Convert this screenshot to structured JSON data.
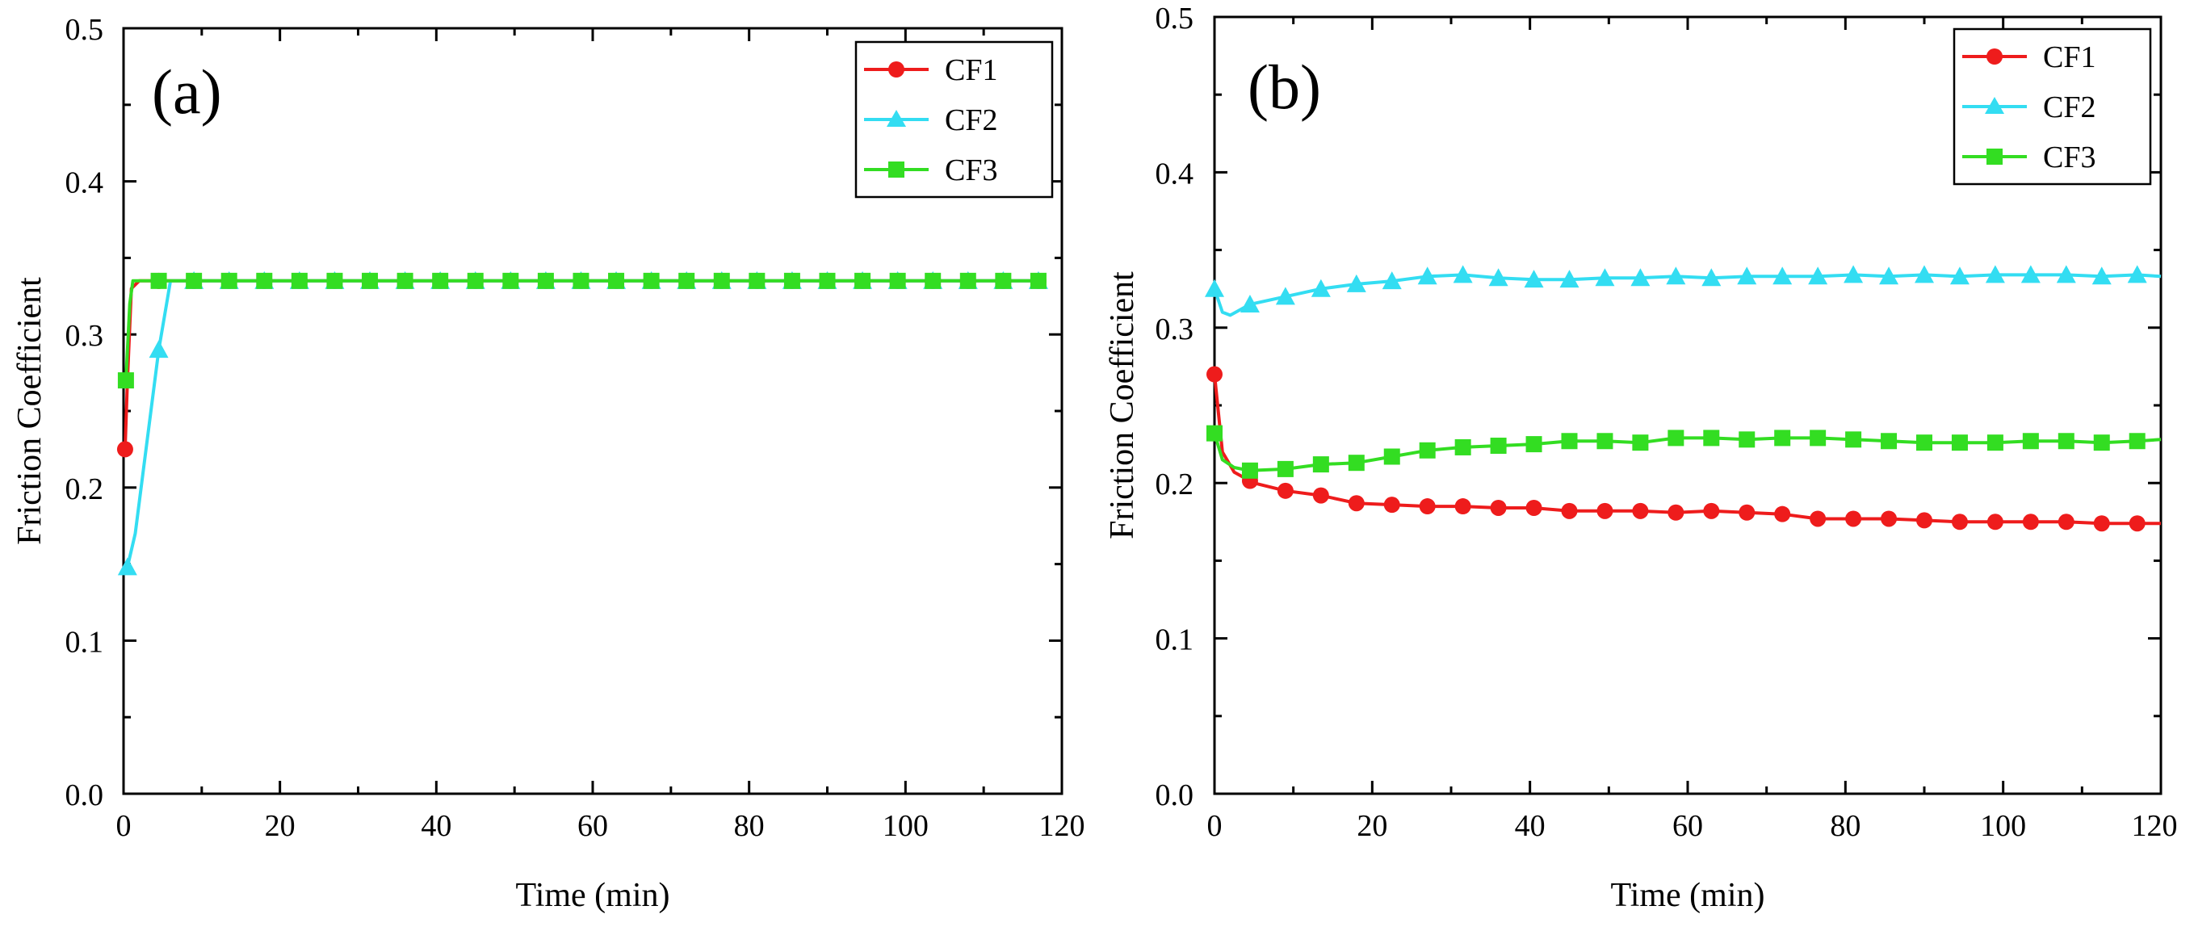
{
  "chart_data": [
    {
      "type": "line",
      "panel_label": "(a)",
      "xlabel": "Time (min)",
      "ylabel": "Friction Coefficient",
      "xlim": [
        0,
        120
      ],
      "ylim": [
        0.0,
        0.5
      ],
      "xticks": [
        "0",
        "20",
        "40",
        "60",
        "80",
        "100",
        "120"
      ],
      "yticks": [
        "0.0",
        "0.1",
        "0.2",
        "0.3",
        "0.4",
        "0.5"
      ],
      "legend_position": "top-right",
      "series": [
        {
          "name": "CF1",
          "color": "#ee1c1c",
          "marker": "circle",
          "x": [
            0.2,
            0.5,
            1,
            2,
            5,
            10,
            20,
            30,
            40,
            50,
            60,
            70,
            80,
            90,
            100,
            110,
            118
          ],
          "y": [
            0.225,
            0.27,
            0.33,
            0.335,
            0.335,
            0.335,
            0.335,
            0.335,
            0.335,
            0.335,
            0.335,
            0.335,
            0.335,
            0.335,
            0.335,
            0.335,
            0.335
          ]
        },
        {
          "name": "CF2",
          "color": "#33ddf2",
          "marker": "triangle",
          "x": [
            0.5,
            1.5,
            2.5,
            3.5,
            4.5,
            5.5,
            6,
            10,
            20,
            30,
            40,
            50,
            60,
            70,
            80,
            90,
            100,
            110,
            118
          ],
          "y": [
            0.148,
            0.17,
            0.21,
            0.25,
            0.29,
            0.32,
            0.335,
            0.335,
            0.335,
            0.335,
            0.335,
            0.335,
            0.335,
            0.335,
            0.335,
            0.335,
            0.335,
            0.335,
            0.335
          ]
        },
        {
          "name": "CF3",
          "color": "#33dd22",
          "marker": "square",
          "x": [
            0.3,
            0.8,
            1.2,
            5,
            10,
            20,
            30,
            40,
            50,
            60,
            70,
            80,
            90,
            100,
            110,
            118
          ],
          "y": [
            0.27,
            0.32,
            0.335,
            0.335,
            0.335,
            0.335,
            0.335,
            0.335,
            0.335,
            0.335,
            0.335,
            0.335,
            0.335,
            0.335,
            0.335,
            0.335
          ]
        }
      ]
    },
    {
      "type": "line",
      "panel_label": "(b)",
      "xlabel": "Time (min)",
      "ylabel": "Friction Coefficient",
      "xlim": [
        0,
        120
      ],
      "ylim": [
        0.0,
        0.5
      ],
      "xticks": [
        "0",
        "20",
        "40",
        "60",
        "80",
        "100",
        "120"
      ],
      "yticks": [
        "0.0",
        "0.1",
        "0.2",
        "0.3",
        "0.4",
        "0.5"
      ],
      "legend_position": "top-right",
      "series": [
        {
          "name": "CF1",
          "color": "#ee1c1c",
          "marker": "circle",
          "x": [
            0,
            1,
            2.5,
            5,
            9,
            13.5,
            18,
            22.5,
            27,
            31.5,
            36,
            40.5,
            45,
            49.5,
            54,
            58.5,
            63,
            67.5,
            72,
            76.5,
            81,
            85.5,
            90,
            94.5,
            99,
            103.5,
            108,
            112.5,
            118,
            120
          ],
          "y": [
            0.27,
            0.22,
            0.207,
            0.2,
            0.195,
            0.192,
            0.187,
            0.186,
            0.185,
            0.185,
            0.184,
            0.184,
            0.182,
            0.182,
            0.182,
            0.181,
            0.182,
            0.181,
            0.18,
            0.177,
            0.177,
            0.177,
            0.176,
            0.175,
            0.175,
            0.175,
            0.175,
            0.174,
            0.174,
            0.174
          ]
        },
        {
          "name": "CF2",
          "color": "#33ddf2",
          "marker": "triangle",
          "x": [
            0,
            1,
            2,
            4.5,
            9,
            13.5,
            18,
            22.5,
            27,
            31.5,
            36,
            40.5,
            45,
            49.5,
            54,
            58.5,
            63,
            67.5,
            72,
            76.5,
            81,
            85.5,
            90,
            94.5,
            99,
            103.5,
            108,
            112.5,
            117,
            120
          ],
          "y": [
            0.325,
            0.31,
            0.308,
            0.315,
            0.32,
            0.325,
            0.328,
            0.33,
            0.333,
            0.334,
            0.332,
            0.331,
            0.331,
            0.332,
            0.332,
            0.333,
            0.332,
            0.333,
            0.333,
            0.333,
            0.334,
            0.333,
            0.334,
            0.333,
            0.334,
            0.334,
            0.334,
            0.333,
            0.334,
            0.333
          ]
        },
        {
          "name": "CF3",
          "color": "#33dd22",
          "marker": "square",
          "x": [
            0,
            1,
            2.5,
            4.5,
            9,
            13.5,
            18,
            22.5,
            27,
            31.5,
            36,
            40.5,
            45,
            49.5,
            54,
            58.5,
            63,
            67.5,
            72,
            76.5,
            81,
            85.5,
            90,
            94.5,
            99,
            103.5,
            108,
            112.5,
            117,
            120
          ],
          "y": [
            0.232,
            0.215,
            0.21,
            0.208,
            0.209,
            0.212,
            0.213,
            0.217,
            0.221,
            0.223,
            0.224,
            0.225,
            0.227,
            0.227,
            0.226,
            0.229,
            0.229,
            0.228,
            0.229,
            0.229,
            0.228,
            0.227,
            0.226,
            0.226,
            0.226,
            0.227,
            0.227,
            0.226,
            0.227,
            0.228
          ]
        }
      ]
    }
  ]
}
